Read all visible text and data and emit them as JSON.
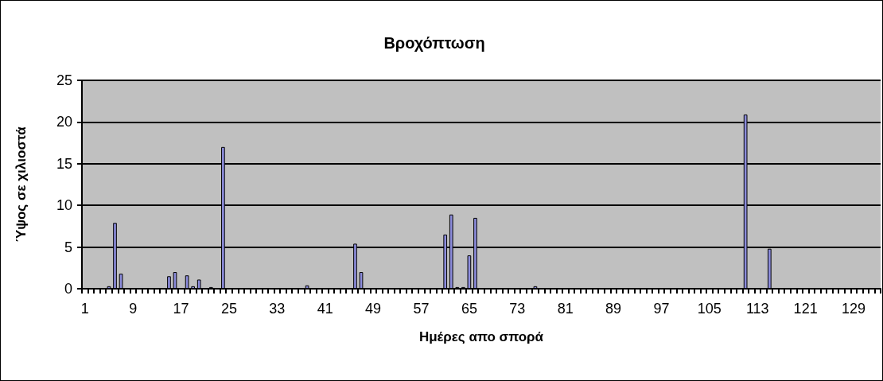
{
  "chart_data": {
    "type": "bar",
    "title": "Βροχόπτωση",
    "xlabel": "Ημέρες απο σπορά",
    "ylabel": "Ύψος σε χιλιοστά",
    "categories": [
      "1",
      null,
      null,
      null,
      null,
      null,
      null,
      null,
      "9",
      null,
      null,
      null,
      null,
      null,
      null,
      null,
      "17",
      null,
      null,
      null,
      null,
      null,
      null,
      null,
      "25",
      null,
      null,
      null,
      null,
      null,
      null,
      null,
      "33",
      null,
      null,
      null,
      null,
      null,
      null,
      null,
      "41",
      null,
      null,
      null,
      null,
      null,
      null,
      null,
      "49",
      null,
      null,
      null,
      null,
      null,
      null,
      null,
      "57",
      null,
      null,
      null,
      null,
      null,
      null,
      null,
      "65",
      null,
      null,
      null,
      null,
      null,
      null,
      null,
      "73",
      null,
      null,
      null,
      null,
      null,
      null,
      null,
      "81",
      null,
      null,
      null,
      null,
      null,
      null,
      null,
      "89",
      null,
      null,
      null,
      null,
      null,
      null,
      null,
      "97",
      null,
      null,
      null,
      null,
      null,
      null,
      null,
      "105",
      null,
      null,
      null,
      null,
      null,
      null,
      null,
      "113",
      null,
      null,
      null,
      null,
      null,
      null,
      null,
      "121",
      null,
      null,
      null,
      null,
      null,
      null,
      null,
      "129",
      null,
      null,
      null,
      null
    ],
    "values": [
      null,
      null,
      null,
      null,
      0.3,
      7.9,
      1.8,
      null,
      null,
      null,
      null,
      null,
      null,
      null,
      1.5,
      2.0,
      null,
      1.6,
      0.3,
      1.1,
      null,
      0.2,
      null,
      17.0,
      null,
      null,
      null,
      null,
      null,
      null,
      null,
      null,
      null,
      null,
      null,
      null,
      null,
      0.4,
      null,
      null,
      null,
      null,
      null,
      null,
      null,
      5.4,
      2.0,
      null,
      null,
      null,
      null,
      null,
      null,
      null,
      null,
      null,
      null,
      null,
      null,
      null,
      6.5,
      8.9,
      0.2,
      0.2,
      4.0,
      8.5,
      null,
      null,
      null,
      null,
      null,
      null,
      null,
      null,
      null,
      0.3,
      null,
      null,
      null,
      null,
      null,
      null,
      null,
      null,
      null,
      null,
      null,
      null,
      null,
      null,
      null,
      null,
      null,
      null,
      null,
      null,
      null,
      null,
      null,
      null,
      null,
      null,
      null,
      null,
      null,
      null,
      null,
      null,
      null,
      null,
      20.9,
      null,
      null,
      null,
      4.8,
      null,
      null,
      null,
      null,
      null,
      null,
      null,
      null,
      null,
      null,
      null,
      null,
      null,
      null,
      null,
      null,
      null,
      null
    ],
    "color": "#8c8cdc",
    "ylim": [
      0,
      25
    ],
    "yticks": [
      0,
      5,
      10,
      15,
      20,
      25
    ],
    "grid": true
  }
}
